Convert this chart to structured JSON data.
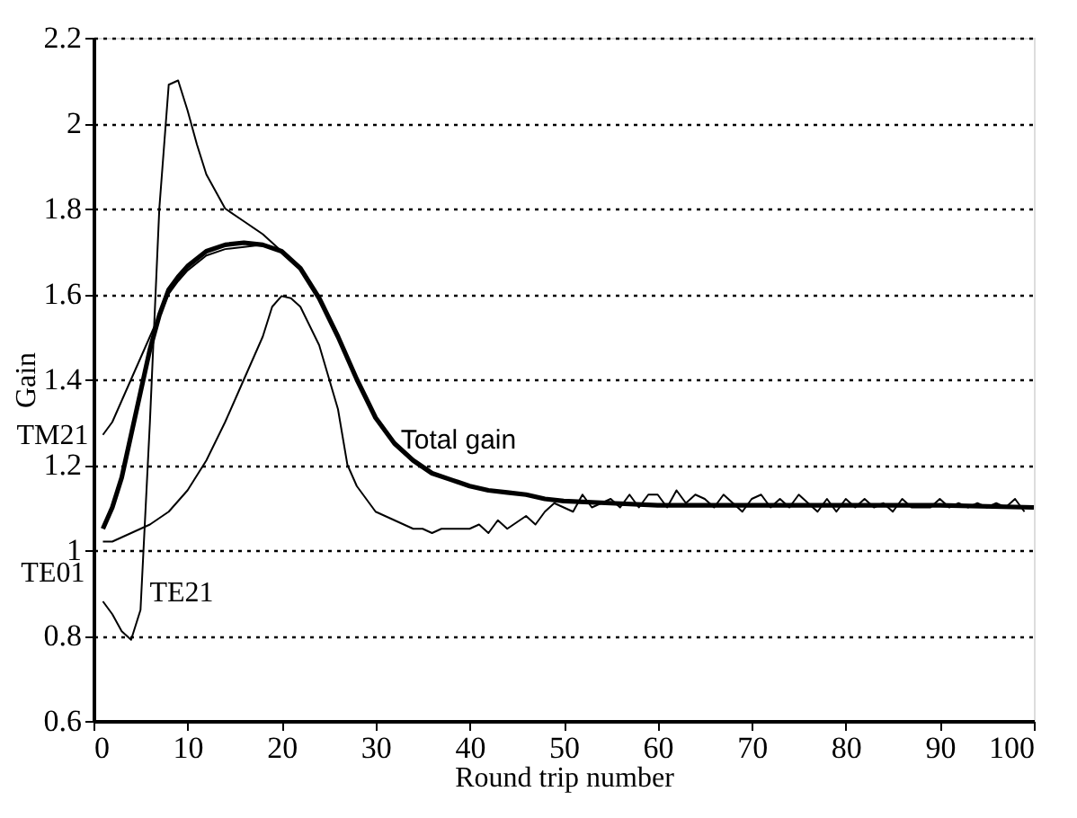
{
  "chart_data": {
    "type": "line",
    "xlabel": "Round trip number",
    "ylabel": "Gain",
    "xlim": [
      0,
      100
    ],
    "ylim": [
      0.6,
      2.2
    ],
    "xticks": [
      0,
      10,
      20,
      30,
      40,
      50,
      60,
      70,
      80,
      90,
      100
    ],
    "yticks": [
      0.6,
      0.8,
      {
        "value": 1,
        "label": "1"
      },
      1.2,
      1.4,
      1.6,
      1.8,
      {
        "value": 2,
        "label": "2"
      },
      2.2
    ],
    "grid": "y",
    "legend": false,
    "marker": "none",
    "line_style": "solid",
    "series": [
      {
        "name": "Total gain",
        "color": "#000000",
        "x": [
          1,
          2,
          3,
          4,
          5,
          6,
          7,
          8,
          9,
          10,
          12,
          14,
          16,
          18,
          20,
          22,
          24,
          26,
          28,
          30,
          32,
          34,
          36,
          38,
          40,
          42,
          44,
          46,
          48,
          50,
          55,
          60,
          70,
          80,
          90,
          100
        ],
        "values": [
          1.05,
          1.1,
          1.17,
          1.27,
          1.37,
          1.47,
          1.55,
          1.61,
          1.64,
          1.665,
          1.7,
          1.715,
          1.72,
          1.715,
          1.7,
          1.66,
          1.59,
          1.5,
          1.4,
          1.31,
          1.25,
          1.21,
          1.18,
          1.165,
          1.15,
          1.14,
          1.135,
          1.13,
          1.12,
          1.115,
          1.11,
          1.105,
          1.105,
          1.105,
          1.105,
          1.1
        ]
      },
      {
        "name": "TM21",
        "color": "#000000",
        "x": [
          1,
          2,
          3,
          4,
          5,
          6,
          7,
          8,
          9,
          10,
          12,
          14,
          16,
          18,
          20,
          22
        ],
        "values": [
          1.27,
          1.3,
          1.35,
          1.4,
          1.45,
          1.5,
          1.55,
          1.6,
          1.63,
          1.655,
          1.69,
          1.705,
          1.71,
          1.715,
          1.7,
          1.66
        ]
      },
      {
        "name": "TE21",
        "color": "#000000",
        "x": [
          1,
          2,
          3,
          4,
          5,
          6,
          7,
          8,
          9,
          10,
          11,
          12,
          13,
          14,
          16,
          18,
          20,
          22
        ],
        "values": [
          0.88,
          0.85,
          0.81,
          0.79,
          0.86,
          1.3,
          1.8,
          2.09,
          2.1,
          2.03,
          1.95,
          1.88,
          1.84,
          1.8,
          1.77,
          1.74,
          1.7,
          1.66
        ]
      },
      {
        "name": "TE01",
        "color": "#000000",
        "x": [
          1,
          2,
          3,
          4,
          6,
          8,
          10,
          12,
          14,
          16,
          18,
          19,
          20,
          21,
          22,
          24,
          26,
          27,
          28,
          30,
          32,
          34,
          35,
          36,
          37,
          38,
          40,
          41,
          42,
          43,
          44,
          46,
          47,
          48,
          49,
          50,
          51,
          52,
          53,
          54,
          55,
          56,
          57,
          58,
          59,
          60,
          61,
          62,
          63,
          64,
          65,
          66,
          67,
          68,
          69,
          70,
          71,
          72,
          73,
          74,
          75,
          76,
          77,
          78,
          79,
          80,
          81,
          82,
          83,
          84,
          85,
          86,
          87,
          88,
          89,
          90,
          91,
          92,
          93,
          94,
          95,
          96,
          97,
          98,
          99
        ],
        "values": [
          1.02,
          1.02,
          1.03,
          1.04,
          1.06,
          1.09,
          1.14,
          1.21,
          1.3,
          1.4,
          1.5,
          1.57,
          1.595,
          1.59,
          1.57,
          1.48,
          1.33,
          1.2,
          1.15,
          1.09,
          1.07,
          1.05,
          1.05,
          1.04,
          1.05,
          1.05,
          1.05,
          1.06,
          1.04,
          1.07,
          1.05,
          1.08,
          1.06,
          1.09,
          1.11,
          1.1,
          1.09,
          1.13,
          1.1,
          1.11,
          1.12,
          1.1,
          1.13,
          1.1,
          1.13,
          1.13,
          1.1,
          1.14,
          1.11,
          1.13,
          1.12,
          1.1,
          1.13,
          1.11,
          1.09,
          1.12,
          1.13,
          1.1,
          1.12,
          1.1,
          1.13,
          1.11,
          1.09,
          1.12,
          1.09,
          1.12,
          1.1,
          1.12,
          1.1,
          1.11,
          1.09,
          1.12,
          1.1,
          1.1,
          1.1,
          1.12,
          1.1,
          1.11,
          1.1,
          1.11,
          1.1,
          1.11,
          1.1,
          1.12,
          1.09
        ]
      }
    ]
  }
}
